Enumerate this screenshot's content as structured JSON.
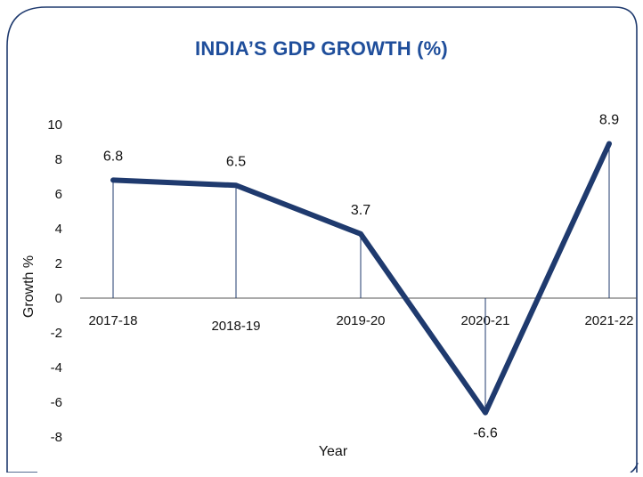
{
  "chart_data": {
    "type": "line",
    "title": "INDIA’S GDP GROWTH (%)",
    "xlabel": "Year",
    "ylabel": "Growth %",
    "categories": [
      "2017-18",
      "2018-19",
      "2019-20",
      "2020-21",
      "2021-22"
    ],
    "values": [
      6.8,
      6.5,
      3.7,
      -6.6,
      8.9
    ],
    "data_labels": [
      "6.8",
      "6.5",
      "3.7",
      "-6.6",
      "8.9"
    ],
    "y_ticks": [
      "10",
      "8",
      "6",
      "4",
      "2",
      "0",
      "-2",
      "-4",
      "-6",
      "-8"
    ],
    "ylim": [
      -8,
      10
    ],
    "grid": false,
    "drop_lines": true,
    "line_color": "#1f3a6e",
    "title_color": "#1f4e9b",
    "border_color": "#1f3a6e"
  }
}
